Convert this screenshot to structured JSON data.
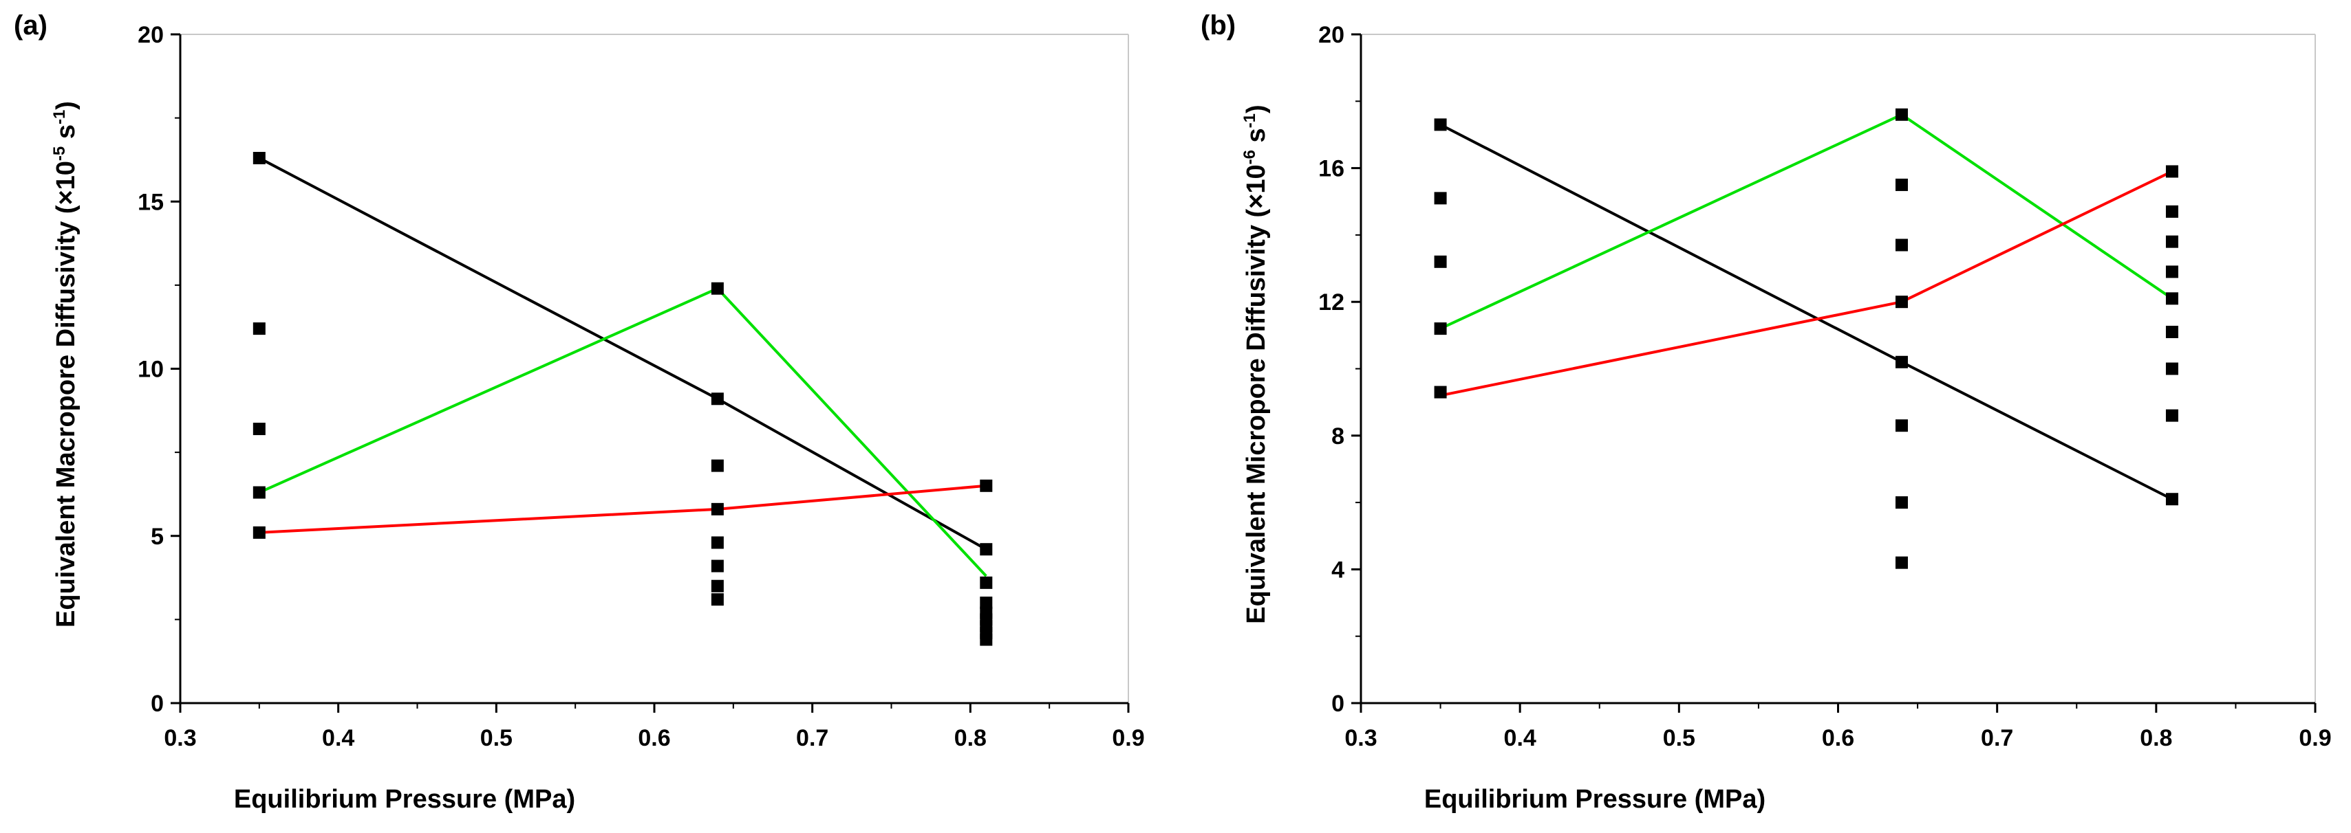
{
  "chart_data": [
    {
      "panel": "(a)",
      "type": "scatter",
      "xlabel": "Equilibrium Pressure (MPa)",
      "ylabel": {
        "main": "Equivalent Macropore Diffusivity (×10",
        "exp1": "-5",
        "mid": " s",
        "exp2": "-1",
        "end": ")"
      },
      "xlim": [
        0.3,
        0.9
      ],
      "ylim": [
        0,
        20
      ],
      "xticks": [
        0.3,
        0.4,
        0.5,
        0.6,
        0.7,
        0.8,
        0.9
      ],
      "xtick_labels": [
        "0.3",
        "0.4",
        "0.5",
        "0.6",
        "0.7",
        "0.8",
        "0.9"
      ],
      "yticks": [
        0,
        5,
        10,
        15,
        20
      ],
      "ytick_labels": [
        "0",
        "5",
        "10",
        "15",
        "20"
      ],
      "points": [
        {
          "x": 0.35,
          "ys": [
            16.3,
            11.2,
            8.2,
            6.3,
            5.1
          ]
        },
        {
          "x": 0.64,
          "ys": [
            12.4,
            9.1,
            7.1,
            5.8,
            4.8,
            4.1,
            3.5,
            3.1
          ]
        },
        {
          "x": 0.81,
          "ys": [
            6.5,
            4.6,
            3.6,
            3.0,
            2.7,
            2.5,
            2.3,
            2.1,
            1.9
          ]
        }
      ],
      "lines": [
        {
          "color": "#000000",
          "x": [
            0.35,
            0.64,
            0.81
          ],
          "y": [
            16.3,
            9.1,
            4.6
          ]
        },
        {
          "color": "#00e000",
          "x": [
            0.35,
            0.64,
            0.81
          ],
          "y": [
            6.3,
            12.4,
            3.8
          ]
        },
        {
          "color": "#ff0000",
          "x": [
            0.35,
            0.64,
            0.81
          ],
          "y": [
            5.1,
            5.8,
            6.5
          ]
        }
      ]
    },
    {
      "panel": "(b)",
      "type": "scatter",
      "xlabel": "Equilibrium Pressure (MPa)",
      "ylabel": {
        "main": "Equivalent Micropore Diffusivity (×10",
        "exp1": "-6",
        "mid": " s",
        "exp2": "-1",
        "end": ")"
      },
      "xlim": [
        0.3,
        0.9
      ],
      "ylim": [
        0,
        20
      ],
      "xticks": [
        0.3,
        0.4,
        0.5,
        0.6,
        0.7,
        0.8,
        0.9
      ],
      "xtick_labels": [
        "0.3",
        "0.4",
        "0.5",
        "0.6",
        "0.7",
        "0.8",
        "0.9"
      ],
      "yticks": [
        0,
        4,
        8,
        12,
        16,
        20
      ],
      "ytick_labels": [
        "0",
        "4",
        "8",
        "12",
        "16",
        "20"
      ],
      "points": [
        {
          "x": 0.35,
          "ys": [
            17.3,
            15.1,
            13.2,
            11.2,
            9.3
          ]
        },
        {
          "x": 0.64,
          "ys": [
            17.6,
            15.5,
            13.7,
            12.0,
            10.2,
            8.3,
            6.0,
            4.2
          ]
        },
        {
          "x": 0.81,
          "ys": [
            15.9,
            14.7,
            13.8,
            12.9,
            12.1,
            11.1,
            10.0,
            8.6,
            6.1
          ]
        }
      ],
      "lines": [
        {
          "color": "#000000",
          "x": [
            0.35,
            0.64,
            0.81
          ],
          "y": [
            17.3,
            10.2,
            6.1
          ]
        },
        {
          "color": "#00e000",
          "x": [
            0.35,
            0.64,
            0.81
          ],
          "y": [
            11.2,
            17.6,
            12.1
          ]
        },
        {
          "color": "#ff0000",
          "x": [
            0.35,
            0.64,
            0.81
          ],
          "y": [
            9.2,
            12.0,
            15.9
          ]
        }
      ]
    }
  ]
}
